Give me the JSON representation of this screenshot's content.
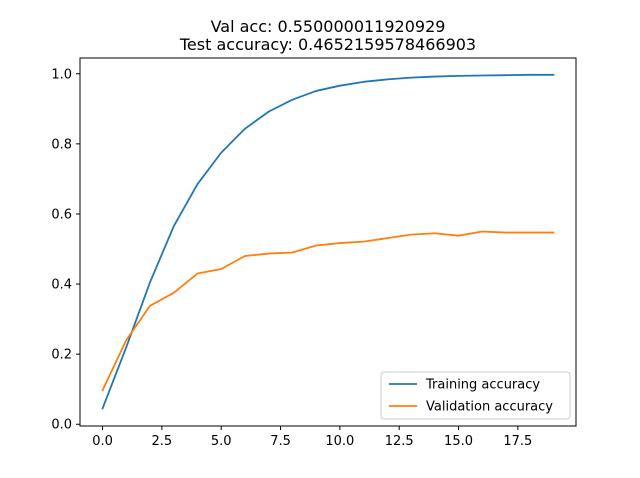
{
  "chart_data": {
    "type": "line",
    "title_lines": [
      "Val acc: 0.550000011920929",
      "Test accuracy: 0.4652159578466903"
    ],
    "xlabel": "",
    "ylabel": "",
    "xlim": [
      -0.95,
      19.95
    ],
    "ylim": [
      -0.005,
      1.045
    ],
    "x_ticks": [
      0.0,
      2.5,
      5.0,
      7.5,
      10.0,
      12.5,
      15.0,
      17.5
    ],
    "x_tick_labels": [
      "0.0",
      "2.5",
      "5.0",
      "7.5",
      "10.0",
      "12.5",
      "15.0",
      "17.5"
    ],
    "y_ticks": [
      0.0,
      0.2,
      0.4,
      0.6,
      0.8,
      1.0
    ],
    "y_tick_labels": [
      "0.0",
      "0.2",
      "0.4",
      "0.6",
      "0.8",
      "1.0"
    ],
    "grid": false,
    "legend_position": "lower-right",
    "x": [
      0,
      1,
      2,
      3,
      4,
      5,
      6,
      7,
      8,
      9,
      10,
      11,
      12,
      13,
      14,
      15,
      16,
      17,
      18,
      19
    ],
    "series": [
      {
        "name": "Training accuracy",
        "color": "#1f77b4",
        "values": [
          0.045,
          0.22,
          0.405,
          0.565,
          0.685,
          0.775,
          0.843,
          0.892,
          0.926,
          0.951,
          0.966,
          0.977,
          0.984,
          0.989,
          0.992,
          0.994,
          0.995,
          0.996,
          0.997,
          0.997
        ]
      },
      {
        "name": "Validation accuracy",
        "color": "#ff7f0e",
        "values": [
          0.097,
          0.24,
          0.338,
          0.375,
          0.43,
          0.443,
          0.48,
          0.487,
          0.49,
          0.51,
          0.517,
          0.521,
          0.531,
          0.541,
          0.545,
          0.538,
          0.55,
          0.547,
          0.547,
          0.547
        ]
      }
    ]
  }
}
